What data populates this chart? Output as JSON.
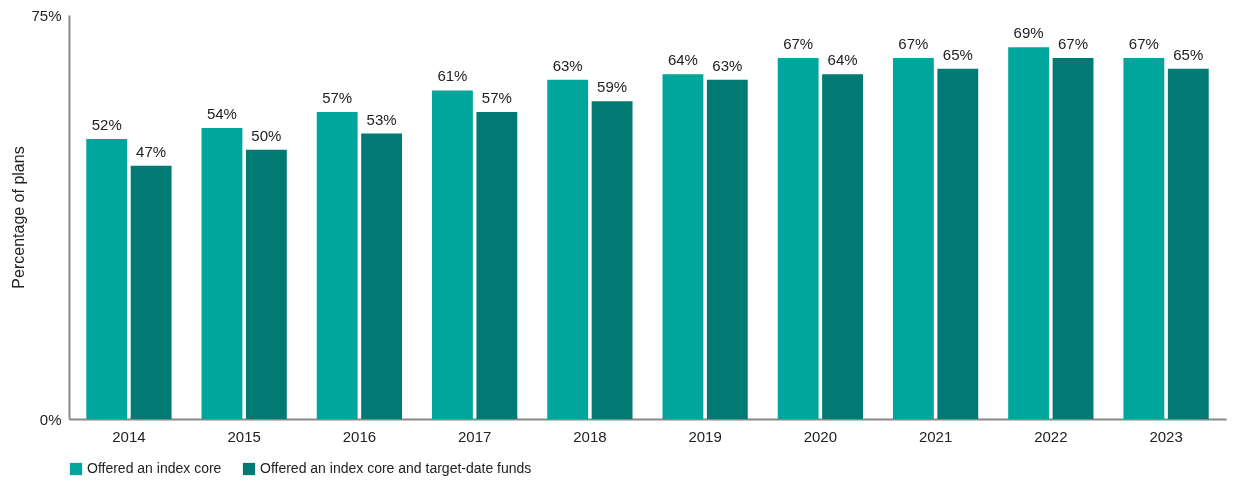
{
  "chart_data": {
    "type": "bar",
    "ylabel": "Percentage of plans",
    "categories": [
      "2014",
      "2015",
      "2016",
      "2017",
      "2018",
      "2019",
      "2020",
      "2021",
      "2022",
      "2023"
    ],
    "series": [
      {
        "name": "Offered an index core",
        "color": "#00a59b",
        "values": [
          52,
          54,
          57,
          61,
          63,
          64,
          67,
          67,
          69,
          67
        ],
        "value_labels": [
          "52%",
          "54%",
          "57%",
          "61%",
          "63%",
          "64%",
          "67%",
          "67%",
          "69%",
          "67%"
        ]
      },
      {
        "name": "Offered an index core and target-date funds",
        "color": "#007a72",
        "values": [
          47,
          50,
          53,
          57,
          59,
          63,
          64,
          65,
          67,
          65
        ],
        "value_labels": [
          "47%",
          "50%",
          "53%",
          "57%",
          "59%",
          "63%",
          "64%",
          "65%",
          "67%",
          "65%"
        ]
      }
    ],
    "ylim": [
      0,
      75
    ],
    "yticks": [
      {
        "value": 0,
        "label": "0%"
      },
      {
        "value": 75,
        "label": "75%"
      }
    ],
    "grid": false,
    "legend": "bottom left"
  }
}
